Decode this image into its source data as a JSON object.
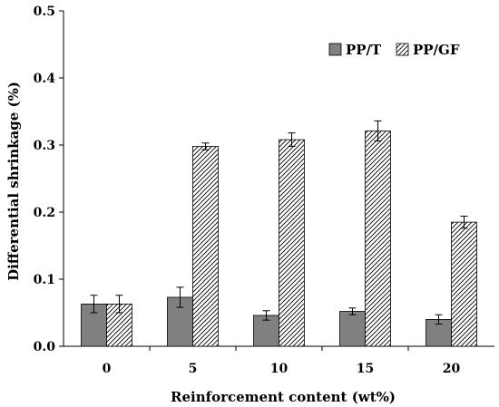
{
  "chart_data": {
    "type": "bar",
    "title": "",
    "xlabel": "Reinforcement content (wt%)",
    "ylabel": "Differential shrinkage (%)",
    "categories": [
      "0",
      "5",
      "10",
      "15",
      "20"
    ],
    "ylim": [
      0,
      0.5
    ],
    "yticks": [
      "0.0",
      "0.1",
      "0.2",
      "0.3",
      "0.4",
      "0.5"
    ],
    "grid": false,
    "legend_position": "top-right",
    "series": [
      {
        "name": "PP/T",
        "fill": "solid",
        "color": "#808080",
        "values": [
          0.063,
          0.073,
          0.046,
          0.052,
          0.04
        ],
        "errors": [
          0.013,
          0.015,
          0.007,
          0.005,
          0.007
        ]
      },
      {
        "name": "PP/GF",
        "fill": "hatched",
        "color": "#ffffff",
        "values": [
          0.063,
          0.298,
          0.308,
          0.321,
          0.185
        ],
        "errors": [
          0.013,
          0.005,
          0.01,
          0.015,
          0.009
        ]
      }
    ]
  }
}
